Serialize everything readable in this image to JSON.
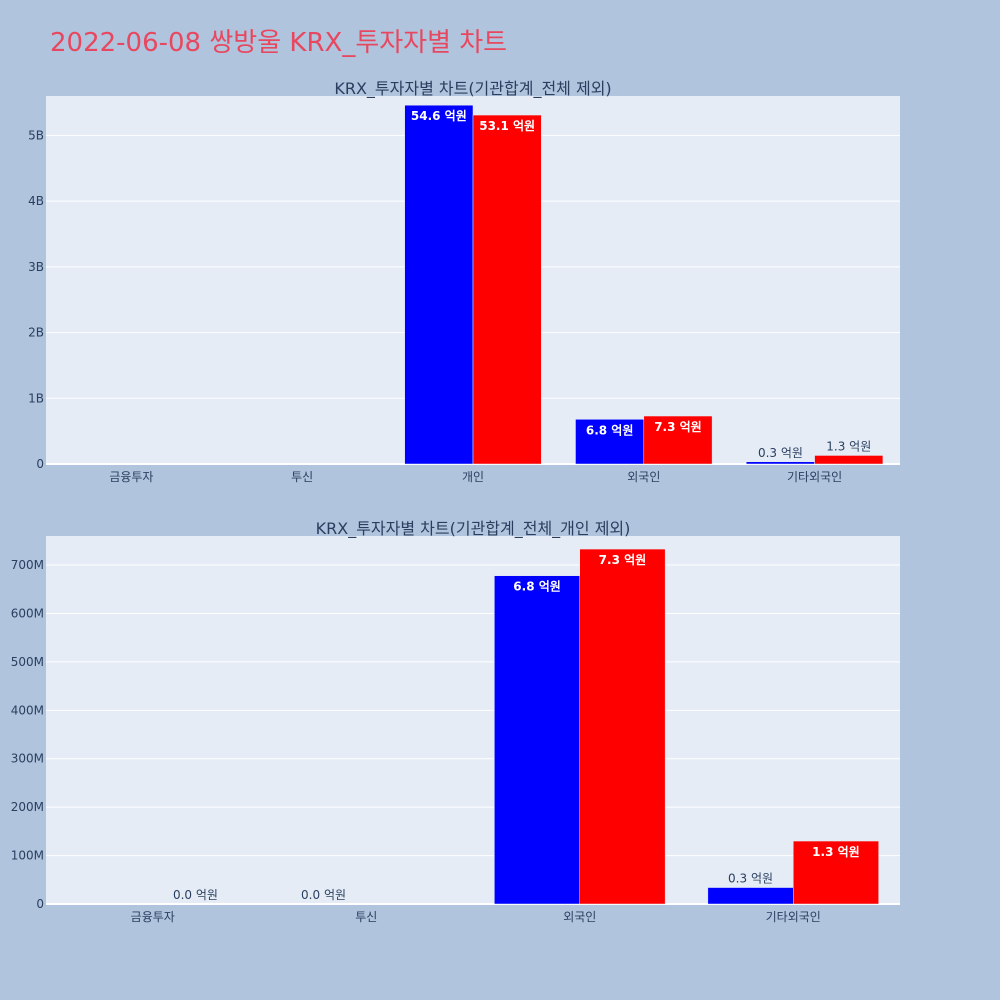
{
  "page": {
    "title": "2022-06-08 쌍방울 KRX_투자자별 차트"
  },
  "colors": {
    "background": "#b0c4de",
    "plot_bg": "#e5ecf6",
    "title": "#e8485f",
    "buy": "#0000ff",
    "sell": "#ff0000"
  },
  "chart_data": [
    {
      "type": "bar",
      "title": "KRX_투자자별 차트(기관합계_전체 제외)",
      "categories": [
        "금융투자",
        "투신",
        "개인",
        "외국인",
        "기타외국인"
      ],
      "ylim": [
        0,
        5600000000
      ],
      "yticks": [
        0,
        1000000000,
        2000000000,
        3000000000,
        4000000000,
        5000000000
      ],
      "ytick_labels": [
        "0",
        "1B",
        "2B",
        "3B",
        "4B",
        "5B"
      ],
      "grid": true,
      "series": [
        {
          "color": "#0000ff",
          "values": [
            0,
            0,
            5460000000,
            680000000,
            34000000
          ],
          "labels": [
            "",
            "",
            "54.6 억원",
            "6.8 억원",
            "0.3 억원"
          ]
        },
        {
          "color": "#ff0000",
          "values": [
            0,
            0,
            5310000000,
            730000000,
            130000000
          ],
          "labels": [
            "",
            "",
            "53.1 억원",
            "7.3 억원",
            "1.3 억원"
          ]
        }
      ]
    },
    {
      "type": "bar",
      "title": "KRX_투자자별 차트(기관합계_전체_개인 제외)",
      "categories": [
        "금융투자",
        "투신",
        "외국인",
        "기타외국인"
      ],
      "ylim": [
        0,
        760000000
      ],
      "yticks": [
        0,
        100000000,
        200000000,
        300000000,
        400000000,
        500000000,
        600000000,
        700000000
      ],
      "ytick_labels": [
        "0",
        "100M",
        "200M",
        "300M",
        "400M",
        "500M",
        "600M",
        "700M"
      ],
      "grid": true,
      "series": [
        {
          "color": "#0000ff",
          "values": [
            0,
            0,
            678000000,
            34000000
          ],
          "labels": [
            "",
            "0.0 억원",
            "6.8 억원",
            "0.3 억원"
          ]
        },
        {
          "color": "#ff0000",
          "values": [
            0,
            0,
            733000000,
            130000000
          ],
          "labels": [
            "0.0 억원",
            "",
            "7.3 억원",
            "1.3 억원"
          ]
        }
      ]
    }
  ]
}
